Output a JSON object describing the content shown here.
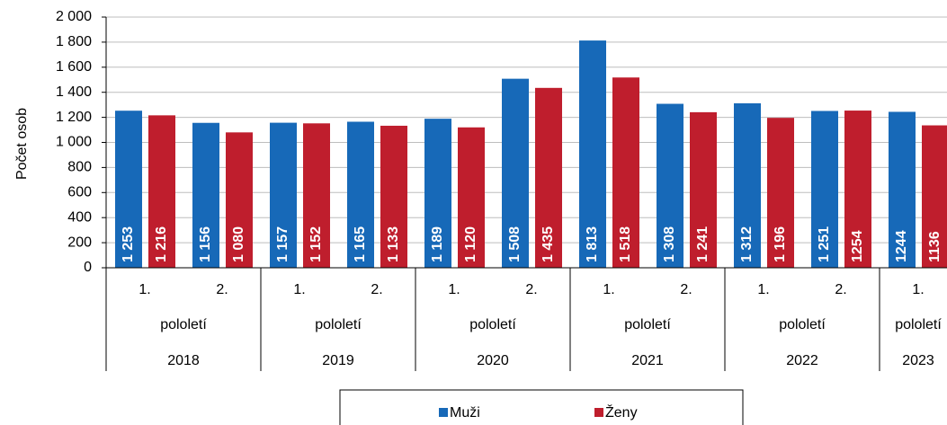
{
  "chart_data": {
    "type": "bar",
    "y_label": "Počet osob",
    "groups": [
      {
        "period": "pololetí",
        "year": "2018",
        "categories": [
          "1.",
          "2."
        ]
      },
      {
        "period": "pololetí",
        "year": "2019",
        "categories": [
          "1.",
          "2."
        ]
      },
      {
        "period": "pololetí",
        "year": "2020",
        "categories": [
          "1.",
          "2."
        ]
      },
      {
        "period": "pololetí",
        "year": "2021",
        "categories": [
          "1.",
          "2."
        ]
      },
      {
        "period": "pololetí",
        "year": "2022",
        "categories": [
          "1.",
          "2."
        ]
      },
      {
        "period": "pololetí",
        "year": "2023",
        "categories": [
          "1."
        ]
      }
    ],
    "series": [
      {
        "name": "Muži",
        "color": "#1769b8",
        "values": [
          1253,
          1156,
          1157,
          1165,
          1189,
          1508,
          1813,
          1308,
          1312,
          1251,
          1244
        ],
        "value_labels": [
          "1 253",
          "1 156",
          "1 157",
          "1 165",
          "1 189",
          "1 508",
          "1 813",
          "1 308",
          "1 312",
          "1 251",
          "1244"
        ]
      },
      {
        "name": "Ženy",
        "color": "#bf1e2d",
        "values": [
          1216,
          1080,
          1152,
          1133,
          1120,
          1435,
          1518,
          1241,
          1196,
          1254,
          1136
        ],
        "value_labels": [
          "1 216",
          "1 080",
          "1 152",
          "1 133",
          "1 120",
          "1 435",
          "1 518",
          "1 241",
          "1 196",
          "1254",
          "1136"
        ]
      }
    ],
    "ylim": [
      0,
      2000
    ],
    "yticks": [
      0,
      200,
      400,
      600,
      800,
      {
        "value": 1000,
        "label": "1 000"
      },
      {
        "value": 1200,
        "label": "1 200"
      },
      {
        "value": 1400,
        "label": "1 400"
      },
      {
        "value": 1600,
        "label": "1 600"
      },
      {
        "value": 1800,
        "label": "1 800"
      },
      {
        "value": 2000,
        "label": "2 000"
      }
    ],
    "grid": true
  }
}
